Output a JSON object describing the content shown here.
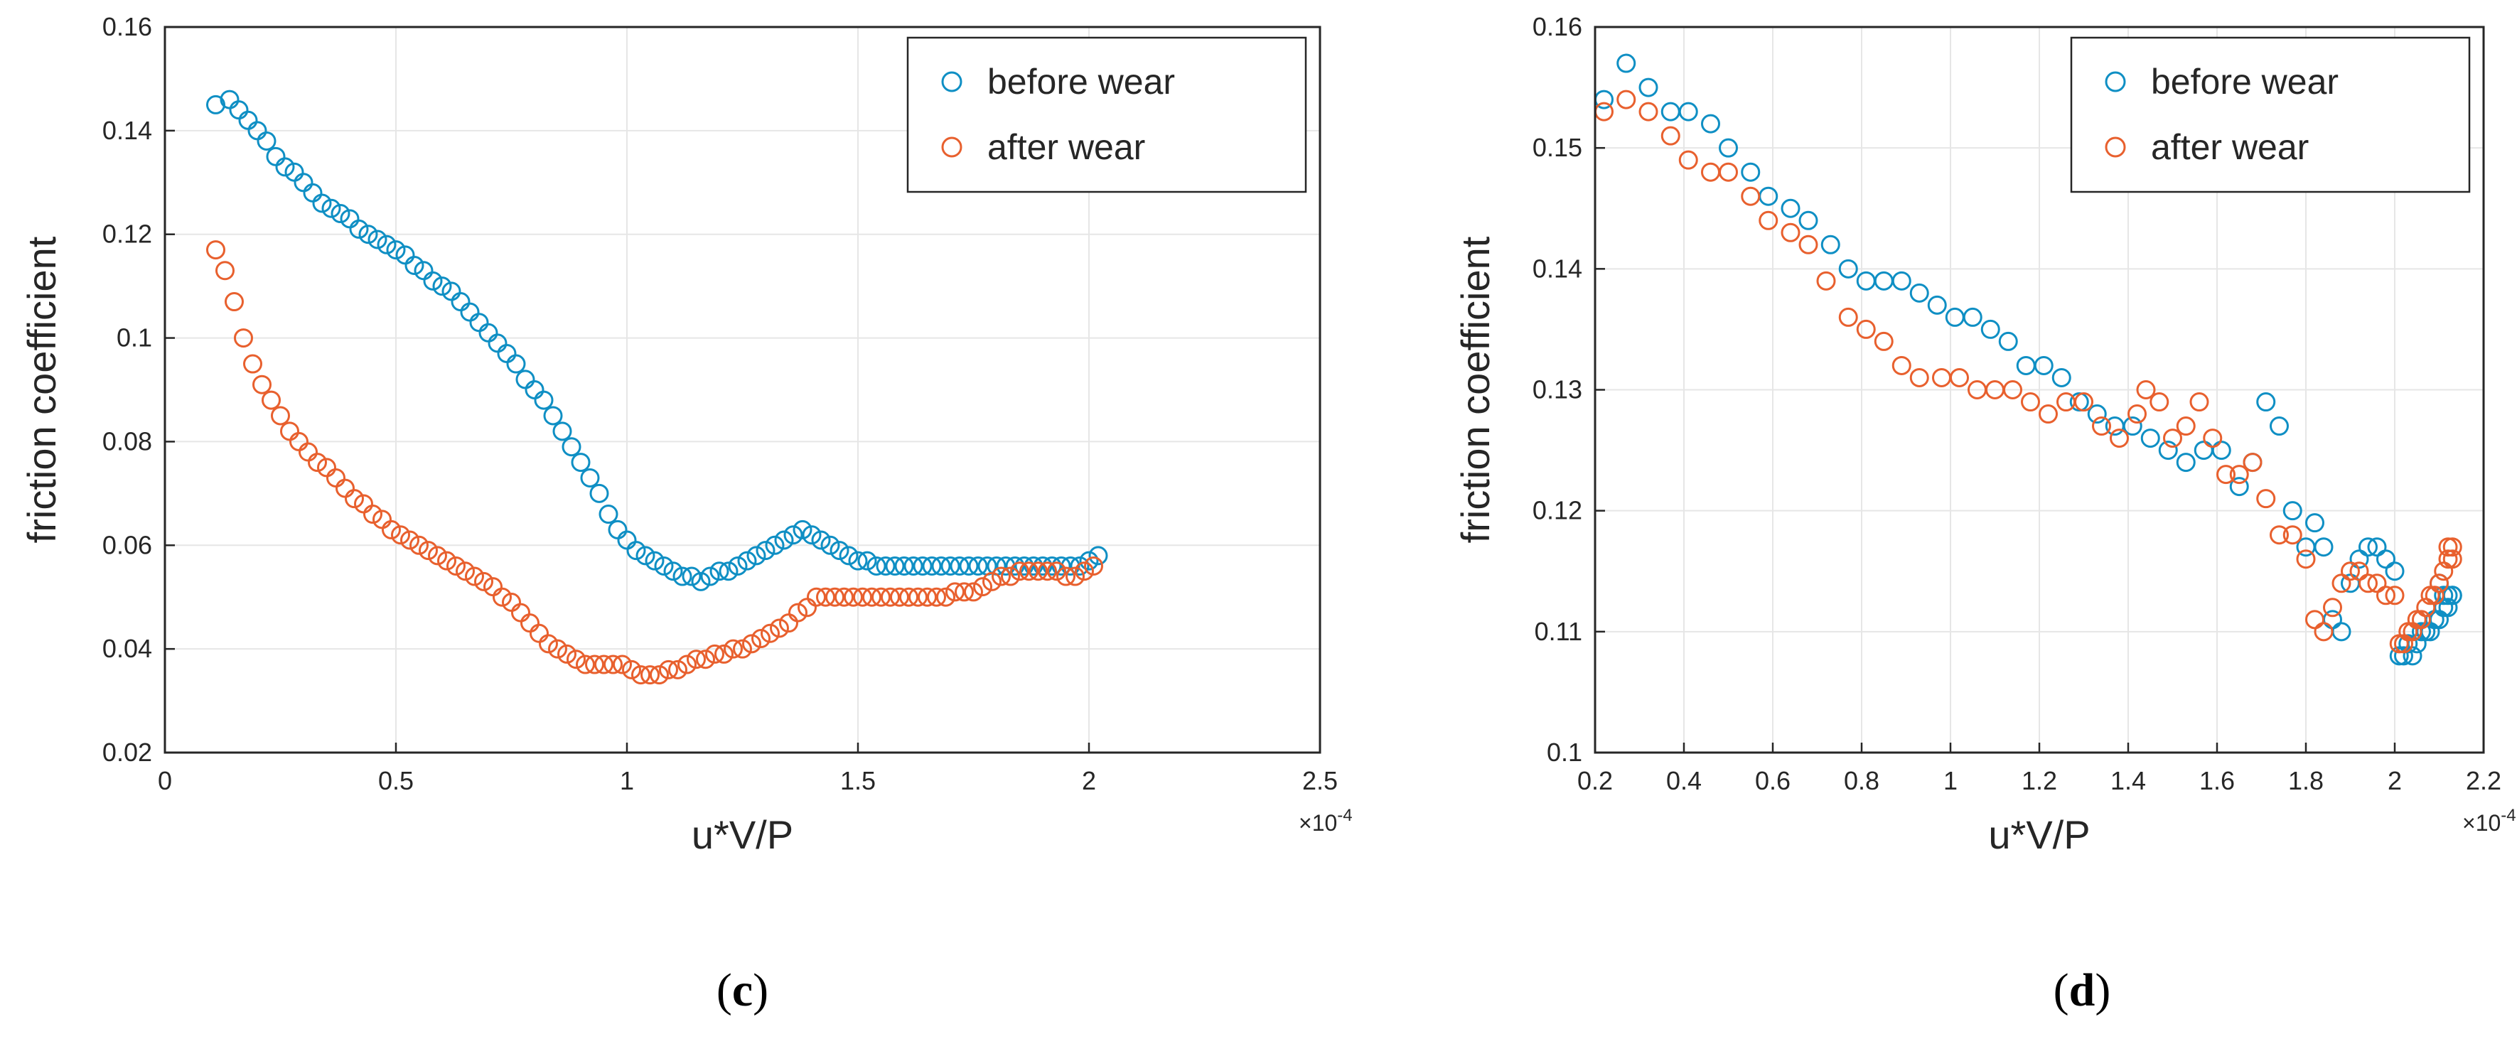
{
  "figure": {
    "panels": [
      {
        "caption_open": "(",
        "caption_letter": "c",
        "caption_close": ")"
      },
      {
        "caption_open": "(",
        "caption_letter": "d",
        "caption_close": ")"
      }
    ]
  },
  "colors": {
    "before": "#0f8fc4",
    "after": "#e8602e",
    "grid": "#e6e6e6",
    "axis": "#262626",
    "text": "#262626"
  },
  "chart_data": [
    {
      "type": "scatter",
      "title": "",
      "xlabel": "u*V/P",
      "ylabel": "friction coefficient",
      "x_exponent": "×10",
      "x_exponent_power": "-4",
      "xlim": [
        0,
        2.5
      ],
      "ylim": [
        0.02,
        0.16
      ],
      "xticks": [
        0,
        0.5,
        1,
        1.5,
        2,
        2.5
      ],
      "xtick_labels": [
        "0",
        "0.5",
        "1",
        "1.5",
        "2",
        "2.5"
      ],
      "yticks": [
        0.02,
        0.04,
        0.06,
        0.08,
        0.1,
        0.12,
        0.14,
        0.16
      ],
      "ytick_labels": [
        "0.02",
        "0.04",
        "0.06",
        "0.08",
        "0.1",
        "0.12",
        "0.14",
        "0.16"
      ],
      "grid": true,
      "legend": "top-right",
      "series": [
        {
          "name": "before wear",
          "color_key": "before",
          "x": [
            0.11,
            0.14,
            0.16,
            0.18,
            0.2,
            0.22,
            0.24,
            0.26,
            0.28,
            0.3,
            0.32,
            0.34,
            0.36,
            0.38,
            0.4,
            0.42,
            0.44,
            0.46,
            0.48,
            0.5,
            0.52,
            0.54,
            0.56,
            0.58,
            0.6,
            0.62,
            0.64,
            0.66,
            0.68,
            0.7,
            0.72,
            0.74,
            0.76,
            0.78,
            0.8,
            0.82,
            0.84,
            0.86,
            0.88,
            0.9,
            0.92,
            0.94,
            0.96,
            0.98,
            1.0,
            1.02,
            1.04,
            1.06,
            1.08,
            1.1,
            1.12,
            1.14,
            1.16,
            1.18,
            1.2,
            1.22,
            1.24,
            1.26,
            1.28,
            1.3,
            1.32,
            1.34,
            1.36,
            1.38,
            1.4,
            1.42,
            1.44,
            1.46,
            1.48,
            1.5,
            1.52,
            1.54,
            1.56,
            1.58,
            1.6,
            1.62,
            1.64,
            1.66,
            1.68,
            1.7,
            1.72,
            1.74,
            1.76,
            1.78,
            1.8,
            1.82,
            1.84,
            1.86,
            1.88,
            1.9,
            1.92,
            1.94,
            1.96,
            1.98,
            2.0,
            2.02
          ],
          "y": [
            0.145,
            0.146,
            0.144,
            0.142,
            0.14,
            0.138,
            0.135,
            0.133,
            0.132,
            0.13,
            0.128,
            0.126,
            0.125,
            0.124,
            0.123,
            0.121,
            0.12,
            0.119,
            0.118,
            0.117,
            0.116,
            0.114,
            0.113,
            0.111,
            0.11,
            0.109,
            0.107,
            0.105,
            0.103,
            0.101,
            0.099,
            0.097,
            0.095,
            0.092,
            0.09,
            0.088,
            0.085,
            0.082,
            0.079,
            0.076,
            0.073,
            0.07,
            0.066,
            0.063,
            0.061,
            0.059,
            0.058,
            0.057,
            0.056,
            0.055,
            0.054,
            0.054,
            0.053,
            0.054,
            0.055,
            0.055,
            0.056,
            0.057,
            0.058,
            0.059,
            0.06,
            0.061,
            0.062,
            0.063,
            0.062,
            0.061,
            0.06,
            0.059,
            0.058,
            0.057,
            0.057,
            0.056,
            0.056,
            0.056,
            0.056,
            0.056,
            0.056,
            0.056,
            0.056,
            0.056,
            0.056,
            0.056,
            0.056,
            0.056,
            0.056,
            0.056,
            0.056,
            0.056,
            0.056,
            0.056,
            0.056,
            0.056,
            0.056,
            0.056,
            0.057,
            0.058
          ]
        },
        {
          "name": "after wear",
          "color_key": "after",
          "x": [
            0.11,
            0.13,
            0.15,
            0.17,
            0.19,
            0.21,
            0.23,
            0.25,
            0.27,
            0.29,
            0.31,
            0.33,
            0.35,
            0.37,
            0.39,
            0.41,
            0.43,
            0.45,
            0.47,
            0.49,
            0.51,
            0.53,
            0.55,
            0.57,
            0.59,
            0.61,
            0.63,
            0.65,
            0.67,
            0.69,
            0.71,
            0.73,
            0.75,
            0.77,
            0.79,
            0.81,
            0.83,
            0.85,
            0.87,
            0.89,
            0.91,
            0.93,
            0.95,
            0.97,
            0.99,
            1.01,
            1.03,
            1.05,
            1.07,
            1.09,
            1.11,
            1.13,
            1.15,
            1.17,
            1.19,
            1.21,
            1.23,
            1.25,
            1.27,
            1.29,
            1.31,
            1.33,
            1.35,
            1.37,
            1.39,
            1.41,
            1.43,
            1.45,
            1.47,
            1.49,
            1.51,
            1.53,
            1.55,
            1.57,
            1.59,
            1.61,
            1.63,
            1.65,
            1.67,
            1.69,
            1.71,
            1.73,
            1.75,
            1.77,
            1.79,
            1.81,
            1.83,
            1.85,
            1.87,
            1.89,
            1.91,
            1.93,
            1.95,
            1.97,
            1.99,
            2.01
          ],
          "y": [
            0.117,
            0.113,
            0.107,
            0.1,
            0.095,
            0.091,
            0.088,
            0.085,
            0.082,
            0.08,
            0.078,
            0.076,
            0.075,
            0.073,
            0.071,
            0.069,
            0.068,
            0.066,
            0.065,
            0.063,
            0.062,
            0.061,
            0.06,
            0.059,
            0.058,
            0.057,
            0.056,
            0.055,
            0.054,
            0.053,
            0.052,
            0.05,
            0.049,
            0.047,
            0.045,
            0.043,
            0.041,
            0.04,
            0.039,
            0.038,
            0.037,
            0.037,
            0.037,
            0.037,
            0.037,
            0.036,
            0.035,
            0.035,
            0.035,
            0.036,
            0.036,
            0.037,
            0.038,
            0.038,
            0.039,
            0.039,
            0.04,
            0.04,
            0.041,
            0.042,
            0.043,
            0.044,
            0.045,
            0.047,
            0.048,
            0.05,
            0.05,
            0.05,
            0.05,
            0.05,
            0.05,
            0.05,
            0.05,
            0.05,
            0.05,
            0.05,
            0.05,
            0.05,
            0.05,
            0.05,
            0.051,
            0.051,
            0.051,
            0.052,
            0.053,
            0.054,
            0.054,
            0.055,
            0.055,
            0.055,
            0.055,
            0.055,
            0.054,
            0.054,
            0.055,
            0.056
          ]
        }
      ]
    },
    {
      "type": "scatter",
      "title": "",
      "xlabel": "u*V/P",
      "ylabel": "friction coefficient",
      "x_exponent": "×10",
      "x_exponent_power": "-4",
      "xlim": [
        0.2,
        2.2
      ],
      "ylim": [
        0.1,
        0.16
      ],
      "xticks": [
        0.2,
        0.4,
        0.6,
        0.8,
        1,
        1.2,
        1.4,
        1.6,
        1.8,
        2,
        2.2
      ],
      "xtick_labels": [
        "0.2",
        "0.4",
        "0.6",
        "0.8",
        "1",
        "1.2",
        "1.4",
        "1.6",
        "1.8",
        "2",
        "2.2"
      ],
      "yticks": [
        0.1,
        0.11,
        0.12,
        0.13,
        0.14,
        0.15,
        0.16
      ],
      "ytick_labels": [
        "0.1",
        "0.11",
        "0.12",
        "0.13",
        "0.14",
        "0.15",
        "0.16"
      ],
      "grid": true,
      "legend": "top-right",
      "series": [
        {
          "name": "before wear",
          "color_key": "before",
          "x": [
            0.22,
            0.27,
            0.32,
            0.37,
            0.41,
            0.46,
            0.5,
            0.55,
            0.59,
            0.64,
            0.68,
            0.73,
            0.77,
            0.81,
            0.85,
            0.89,
            0.93,
            0.97,
            1.01,
            1.05,
            1.09,
            1.13,
            1.17,
            1.21,
            1.25,
            1.29,
            1.33,
            1.37,
            1.41,
            1.45,
            1.49,
            1.53,
            1.57,
            1.61,
            1.65,
            1.68,
            1.71,
            1.74,
            1.77,
            1.8,
            1.82,
            1.84,
            1.86,
            1.88,
            1.9,
            1.92,
            1.94,
            1.96,
            1.98,
            2.0,
            2.01,
            2.02,
            2.03,
            2.04,
            2.05,
            2.06,
            2.07,
            2.08,
            2.09,
            2.1,
            2.11,
            2.12,
            2.13,
            2.13,
            2.12,
            2.11,
            2.1
          ],
          "y": [
            0.154,
            0.157,
            0.155,
            0.153,
            0.153,
            0.152,
            0.15,
            0.148,
            0.146,
            0.145,
            0.144,
            0.142,
            0.14,
            0.139,
            0.139,
            0.139,
            0.138,
            0.137,
            0.136,
            0.136,
            0.135,
            0.134,
            0.132,
            0.132,
            0.131,
            0.129,
            0.128,
            0.127,
            0.127,
            0.126,
            0.125,
            0.124,
            0.125,
            0.125,
            0.122,
            0.124,
            0.129,
            0.127,
            0.12,
            0.117,
            0.119,
            0.117,
            0.111,
            0.11,
            0.114,
            0.116,
            0.117,
            0.117,
            0.116,
            0.115,
            0.108,
            0.108,
            0.109,
            0.108,
            0.109,
            0.11,
            0.11,
            0.11,
            0.111,
            0.111,
            0.112,
            0.112,
            0.113,
            0.113,
            0.113,
            0.113,
            0.114
          ]
        },
        {
          "name": "after wear",
          "color_key": "after",
          "x": [
            0.22,
            0.27,
            0.32,
            0.37,
            0.41,
            0.46,
            0.5,
            0.55,
            0.59,
            0.64,
            0.68,
            0.72,
            0.77,
            0.81,
            0.85,
            0.89,
            0.93,
            0.98,
            1.02,
            1.06,
            1.1,
            1.14,
            1.18,
            1.22,
            1.26,
            1.3,
            1.34,
            1.38,
            1.42,
            1.44,
            1.47,
            1.5,
            1.53,
            1.56,
            1.59,
            1.62,
            1.65,
            1.68,
            1.71,
            1.74,
            1.77,
            1.8,
            1.82,
            1.84,
            1.86,
            1.88,
            1.9,
            1.92,
            1.94,
            1.96,
            1.98,
            2.0,
            2.01,
            2.02,
            2.03,
            2.04,
            2.05,
            2.06,
            2.07,
            2.08,
            2.09,
            2.1,
            2.11,
            2.12,
            2.13,
            2.13,
            2.12
          ],
          "y": [
            0.153,
            0.154,
            0.153,
            0.151,
            0.149,
            0.148,
            0.148,
            0.146,
            0.144,
            0.143,
            0.142,
            0.139,
            0.136,
            0.135,
            0.134,
            0.132,
            0.131,
            0.131,
            0.131,
            0.13,
            0.13,
            0.13,
            0.129,
            0.128,
            0.129,
            0.129,
            0.127,
            0.126,
            0.128,
            0.13,
            0.129,
            0.126,
            0.127,
            0.129,
            0.126,
            0.123,
            0.123,
            0.124,
            0.121,
            0.118,
            0.118,
            0.116,
            0.111,
            0.11,
            0.112,
            0.114,
            0.115,
            0.115,
            0.114,
            0.114,
            0.113,
            0.113,
            0.109,
            0.109,
            0.11,
            0.11,
            0.111,
            0.111,
            0.112,
            0.113,
            0.113,
            0.114,
            0.115,
            0.116,
            0.116,
            0.117,
            0.117
          ]
        }
      ]
    }
  ]
}
